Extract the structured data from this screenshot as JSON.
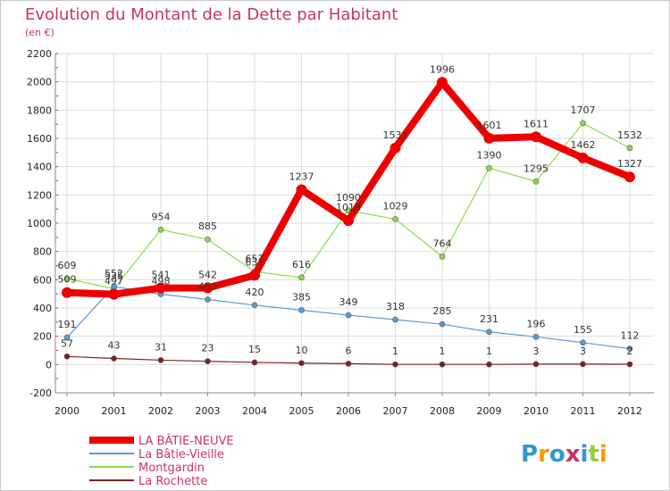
{
  "chart_data": {
    "type": "line",
    "title": "Evolution du Montant de la Dette par Habitant",
    "subtitle": "(en €)",
    "x": [
      "2000",
      "2001",
      "2002",
      "2003",
      "2004",
      "2005",
      "2006",
      "2007",
      "2008",
      "2009",
      "2010",
      "2011",
      "2012"
    ],
    "ylim": [
      -200,
      2200
    ],
    "yticks": [
      -200,
      0,
      200,
      400,
      600,
      800,
      1000,
      1200,
      1400,
      1600,
      1800,
      2000,
      2200
    ],
    "grid": true,
    "legend_position": "bottom-left",
    "series": [
      {
        "name": "LA BÂTIE-NEUVE",
        "color": "#ee0000",
        "values": [
          509,
          497,
          541,
          542,
          631,
          1237,
          1018,
          1531,
          1996,
          1601,
          1611,
          1462,
          1327
        ]
      },
      {
        "name": "La Bâtie-Vieille",
        "color": "#5b9bd5",
        "values": [
          191,
          552,
          498,
          460,
          420,
          385,
          349,
          318,
          285,
          231,
          196,
          155,
          112
        ]
      },
      {
        "name": "Montgardin",
        "color": "#88dd44",
        "values": [
          609,
          535,
          954,
          885,
          657,
          616,
          1090,
          1029,
          764,
          1390,
          1295,
          1707,
          1532
        ]
      },
      {
        "name": "La Rochette",
        "color": "#802020",
        "values": [
          57,
          43,
          31,
          23,
          15,
          10,
          6,
          1,
          1,
          1,
          3,
          3,
          2
        ]
      }
    ]
  },
  "logo": {
    "text": "Proxiti",
    "colors": [
      "#3399cc",
      "#ff9900",
      "#3399cc",
      "#cc3366",
      "#3399cc",
      "#99cc33",
      "#ff9900"
    ]
  }
}
